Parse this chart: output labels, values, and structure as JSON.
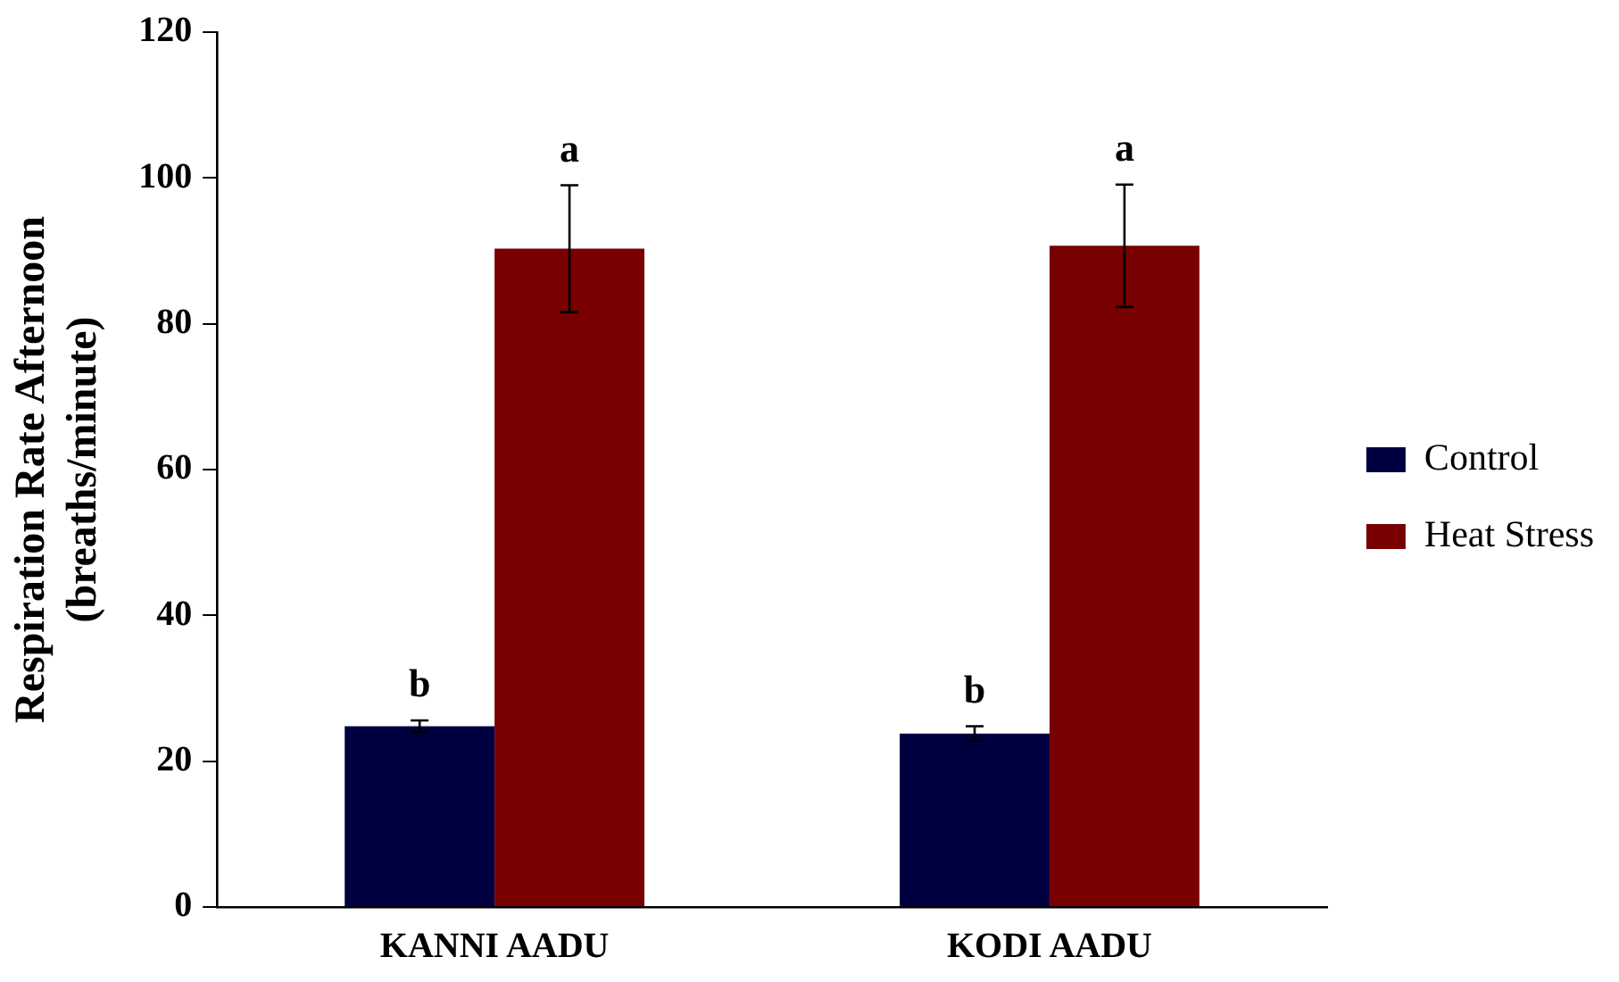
{
  "chart_data": {
    "type": "bar",
    "ylabel": "Respiration Rate Afternoon\n(breaths/minute)",
    "categories": [
      "KANNI AADU",
      "KODI AADU"
    ],
    "series": [
      {
        "name": "Control",
        "color": "#000040",
        "values": [
          24.8,
          23.8
        ],
        "errors": [
          0.8,
          1
        ],
        "value_labels": [
          "b",
          "b"
        ]
      },
      {
        "name": "Heat Stress",
        "color": "#780000",
        "values": [
          90.3,
          90.7
        ],
        "errors": [
          8.7,
          8.4
        ],
        "value_labels": [
          "a",
          "a"
        ]
      }
    ],
    "ylim": [
      0,
      120
    ],
    "yticks": [
      0,
      20,
      40,
      60,
      80,
      100,
      120
    ],
    "grid": false,
    "legend": "right"
  }
}
